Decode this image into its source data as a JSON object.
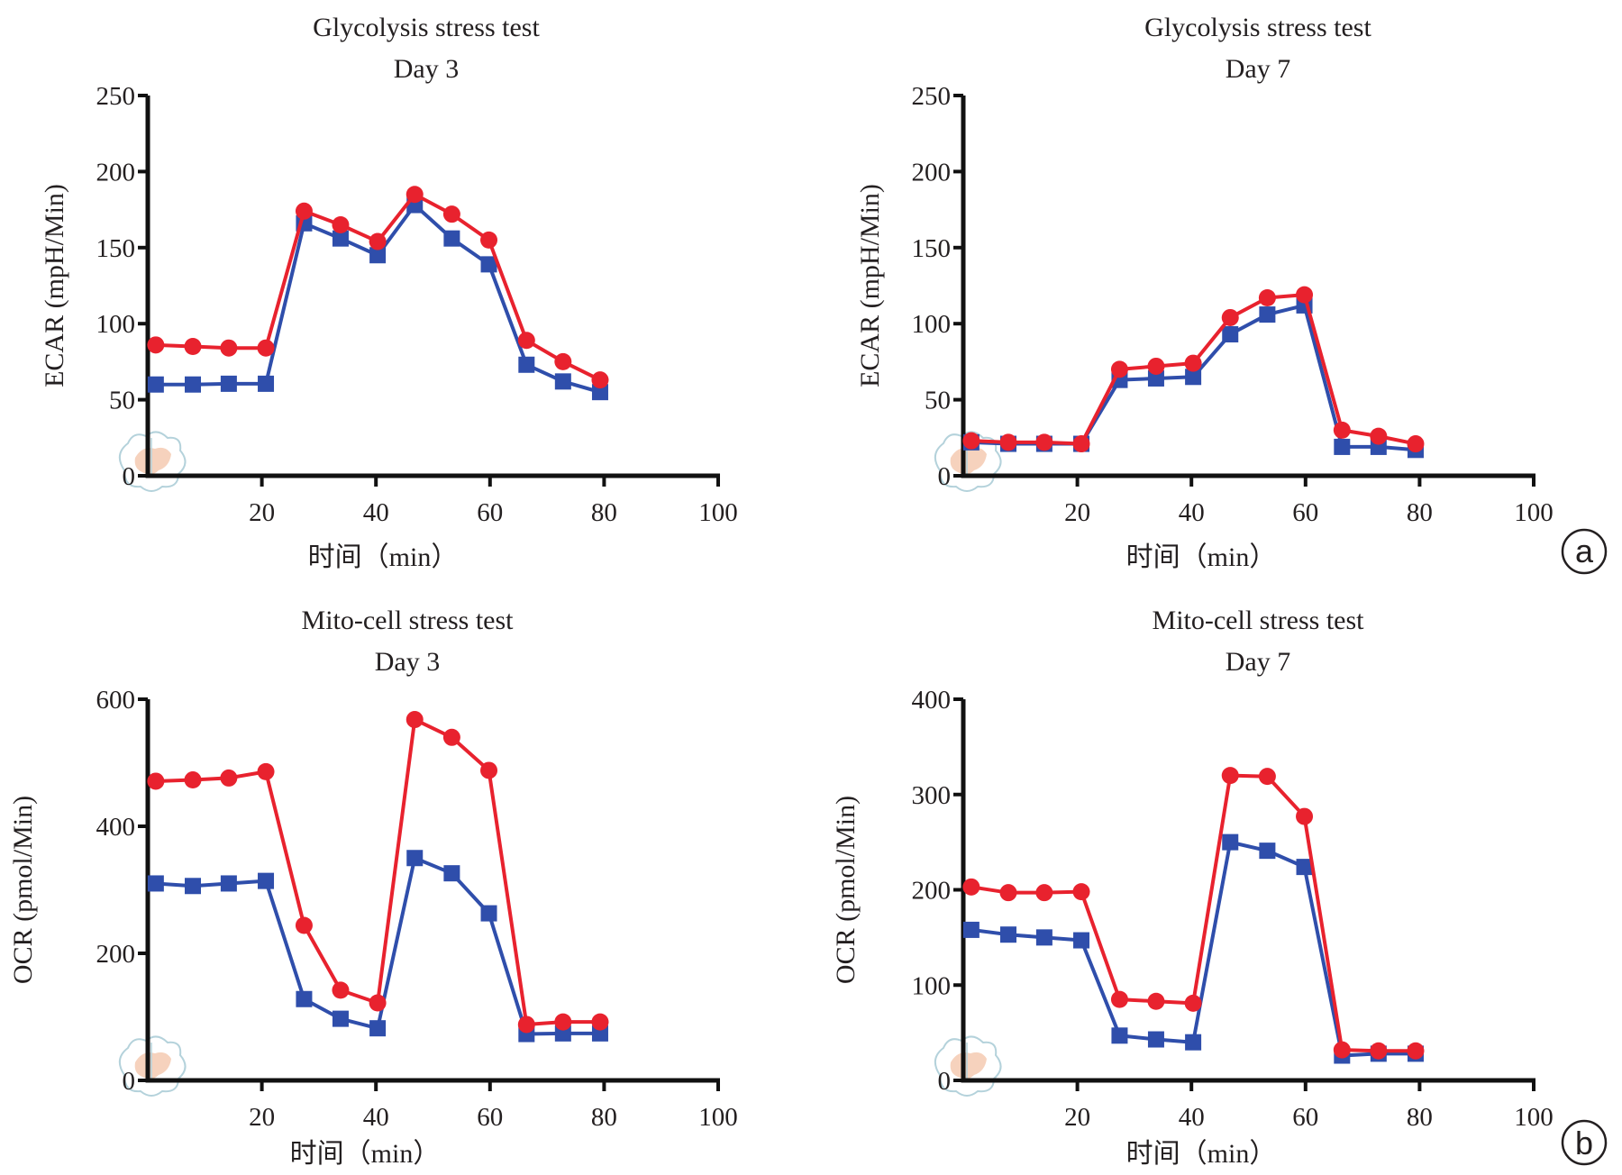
{
  "figure": {
    "panel_labels": [
      "a",
      "b"
    ],
    "colors": {
      "red_series": "#e8222e",
      "blue_series": "#2f4eab",
      "axis": "#111111",
      "watermark": "#9cc3cf",
      "watermark_fill": "#f4c4a8"
    }
  },
  "chart_data": [
    {
      "id": "glyco-day3",
      "type": "line",
      "title": "Glycolysis stress test",
      "subtitle": "Day 3",
      "xlabel": "时间（min）",
      "ylabel": "ECAR (mpH/Min)",
      "xlim": [
        0,
        100
      ],
      "ylim": [
        0,
        250
      ],
      "xticks": [
        20,
        40,
        60,
        80,
        100
      ],
      "yticks": [
        0,
        50,
        100,
        150,
        200,
        250
      ],
      "grid": false,
      "x": [
        1.4,
        7.9,
        14.2,
        20.7,
        27.4,
        33.8,
        40.3,
        46.8,
        53.3,
        59.8,
        66.4,
        72.8,
        79.3
      ],
      "series": [
        {
          "name": "red-circle",
          "marker": "circle",
          "color": "#e8222e",
          "values": [
            86,
            85,
            84,
            84,
            174,
            165,
            154,
            185,
            172,
            155,
            89,
            75,
            63
          ]
        },
        {
          "name": "blue-square",
          "marker": "square",
          "color": "#2f4eab",
          "values": [
            60,
            60,
            60.5,
            60.5,
            166,
            156,
            145,
            178,
            156,
            139,
            73,
            62,
            55
          ]
        }
      ]
    },
    {
      "id": "glyco-day7",
      "type": "line",
      "title": "Glycolysis stress test",
      "subtitle": "Day 7",
      "xlabel": "时间（min）",
      "ylabel": "ECAR (mpH/Min)",
      "xlim": [
        0,
        100
      ],
      "ylim": [
        0,
        250
      ],
      "xticks": [
        20,
        40,
        60,
        80,
        100
      ],
      "yticks": [
        0,
        50,
        100,
        150,
        200,
        250
      ],
      "grid": false,
      "x": [
        1.4,
        7.9,
        14.2,
        20.7,
        27.4,
        33.8,
        40.3,
        46.8,
        53.3,
        59.8,
        66.4,
        72.8,
        79.3
      ],
      "series": [
        {
          "name": "red-circle",
          "marker": "circle",
          "color": "#e8222e",
          "values": [
            23,
            22,
            22,
            21,
            70,
            72,
            74,
            104,
            117,
            119,
            30,
            26,
            21
          ]
        },
        {
          "name": "blue-square",
          "marker": "square",
          "color": "#2f4eab",
          "values": [
            22,
            21,
            21,
            21,
            63,
            64,
            65,
            93,
            106,
            112,
            19,
            19,
            17
          ]
        }
      ]
    },
    {
      "id": "mito-day3",
      "type": "line",
      "title": "Mito-cell stress test",
      "subtitle": "Day 3",
      "xlabel": "时间（min）",
      "ylabel": "OCR (pmol/Min)",
      "xlim": [
        0,
        100
      ],
      "ylim": [
        0,
        600
      ],
      "xticks": [
        20,
        40,
        60,
        80,
        100
      ],
      "yticks": [
        0,
        200,
        400,
        600
      ],
      "grid": false,
      "x": [
        1.4,
        7.9,
        14.2,
        20.7,
        27.4,
        33.8,
        40.3,
        46.8,
        53.3,
        59.8,
        66.4,
        72.8,
        79.3
      ],
      "series": [
        {
          "name": "red-circle",
          "marker": "circle",
          "color": "#e8222e",
          "values": [
            471,
            473,
            476,
            486,
            244,
            142,
            122,
            568,
            540,
            488,
            88,
            92,
            92
          ]
        },
        {
          "name": "blue-square",
          "marker": "square",
          "color": "#2f4eab",
          "values": [
            310,
            306,
            310,
            314,
            128,
            97,
            82,
            350,
            326,
            263,
            73,
            74,
            74
          ]
        }
      ]
    },
    {
      "id": "mito-day7",
      "type": "line",
      "title": "Mito-cell stress test",
      "subtitle": "Day 7",
      "xlabel": "时间（min）",
      "ylabel": "OCR (pmol/Min)",
      "xlim": [
        0,
        100
      ],
      "ylim": [
        0,
        400
      ],
      "xticks": [
        20,
        40,
        60,
        80,
        100
      ],
      "yticks": [
        0,
        100,
        200,
        300,
        400
      ],
      "grid": false,
      "x": [
        1.4,
        7.9,
        14.2,
        20.7,
        27.4,
        33.8,
        40.3,
        46.8,
        53.3,
        59.8,
        66.4,
        72.8,
        79.3
      ],
      "series": [
        {
          "name": "red-circle",
          "marker": "circle",
          "color": "#e8222e",
          "values": [
            203,
            197,
            197,
            198,
            85,
            83,
            81,
            320,
            319,
            277,
            32,
            31,
            31
          ]
        },
        {
          "name": "blue-square",
          "marker": "square",
          "color": "#2f4eab",
          "values": [
            158,
            153,
            150,
            147,
            47,
            43,
            40,
            250,
            241,
            224,
            26,
            28,
            28
          ]
        }
      ]
    }
  ]
}
